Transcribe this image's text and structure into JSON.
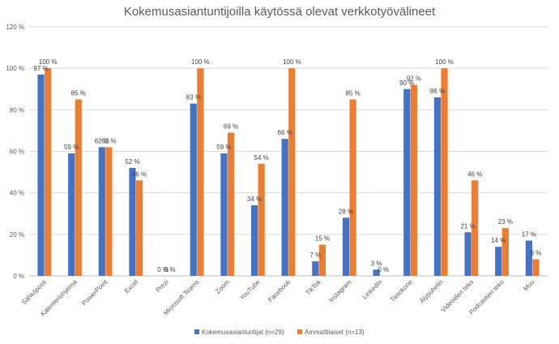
{
  "chart_data": {
    "type": "bar",
    "title": "Kokemusasiantuntijoilla käytössä olevat verkkotyövälineet",
    "xlabel": "",
    "ylabel": "",
    "ylim": [
      0,
      120
    ],
    "yticks": [
      0,
      20,
      40,
      60,
      80,
      100,
      120
    ],
    "ytick_labels": [
      "0 %",
      "20 %",
      "40 %",
      "60 %",
      "80 %",
      "100 %",
      "120 %"
    ],
    "grid": true,
    "legend_position": "bottom",
    "categories": [
      "Sähköposti",
      "Kalenteriohjelma",
      "PowerPoint",
      "Excel",
      "Prezi",
      "Microsoft Teams",
      "Zoom",
      "YouTube",
      "Facebook",
      "TikTok",
      "Instagram",
      "LinkedIn",
      "Tietokone",
      "Älypuhelin",
      "Videoiden teko",
      "Podcastien teko",
      "Muu"
    ],
    "series": [
      {
        "name": "Kokemusasiantuntijat (n=29)",
        "color": "#4472C4",
        "values": [
          97,
          59,
          62,
          52,
          0,
          83,
          59,
          34,
          66,
          7,
          28,
          3,
          90,
          86,
          21,
          14,
          17
        ],
        "labels": [
          "97 %",
          "59 %",
          "62 %",
          "52 %",
          "0 %",
          "83 %",
          "59 %",
          "34 %",
          "66 %",
          "7 %",
          "28 %",
          "3 %",
          "90 %",
          "86 %",
          "21 %",
          "14 %",
          "17 %"
        ]
      },
      {
        "name": "Ammattilaiset (n=13)",
        "color": "#ED7D31",
        "values": [
          100,
          85,
          62,
          46,
          0,
          100,
          69,
          54,
          100,
          15,
          85,
          0,
          92,
          100,
          46,
          23,
          8
        ],
        "labels": [
          "100 %",
          "85 %",
          "62 %",
          "46 %",
          "0 %",
          "100 %",
          "69 %",
          "54 %",
          "100 %",
          "15 %",
          "85 %",
          "0 %",
          "92 %",
          "100 %",
          "46 %",
          "23 %",
          "8 %"
        ]
      }
    ],
    "gridline_color": "#D9D9D9",
    "axis_line_color": "#BFBFBF"
  }
}
